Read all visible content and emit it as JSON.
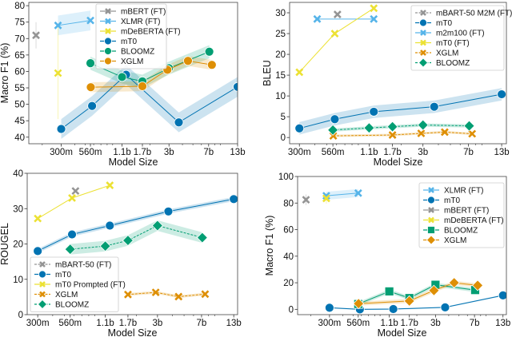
{
  "chart_data": [
    {
      "type": "line",
      "xlabel": "Model Size",
      "ylabel": "Macro F1 (%)",
      "xscale": "log",
      "xlim": [
        0.15,
        13
      ],
      "ylim": [
        38,
        81
      ],
      "xticks": [
        0.3,
        0.56,
        1.1,
        1.7,
        3,
        7,
        13
      ],
      "xtick_labels": [
        "300m",
        "560m",
        "1.1b",
        "1.7b",
        "3b",
        "7b",
        "13b"
      ],
      "yticks": [
        40,
        45,
        50,
        55,
        60,
        65,
        70,
        75,
        80
      ],
      "legend": "top-center",
      "series": [
        {
          "name": "mBERT (FT)",
          "color": "#949494",
          "marker": "x",
          "linestyle": "solid",
          "band": 4,
          "x": [
            0.175
          ],
          "y": [
            71
          ]
        },
        {
          "name": "XLMR (FT)",
          "color": "#56b4e9",
          "marker": "x",
          "linestyle": "solid",
          "band": 3,
          "x": [
            0.28,
            0.56
          ],
          "y": [
            74,
            75.5
          ]
        },
        {
          "name": "mDeBERTA (FT)",
          "color": "#ece133",
          "marker": "x",
          "linestyle": "solid",
          "band": 14,
          "x": [
            0.28
          ],
          "y": [
            59.5
          ]
        },
        {
          "name": "mT0",
          "color": "#0173b2",
          "marker": "o",
          "linestyle": "solid",
          "band": 3,
          "x": [
            0.3,
            0.58,
            1.2,
            3.7,
            13
          ],
          "y": [
            42.5,
            49.5,
            59,
            44.5,
            55.3
          ]
        },
        {
          "name": "BLOOMZ",
          "color": "#029e73",
          "marker": "o",
          "linestyle": "solid",
          "band": 2,
          "x": [
            0.56,
            1.1,
            1.7,
            3,
            7.1
          ],
          "y": [
            62.5,
            58.3,
            57,
            61,
            66
          ]
        },
        {
          "name": "XGLM",
          "color": "#de8f05",
          "marker": "o",
          "linestyle": "solid",
          "band": 1.5,
          "x": [
            0.564,
            1.7,
            2.9,
            4.5,
            7.5
          ],
          "y": [
            55.2,
            55.5,
            60.5,
            63.2,
            62
          ]
        }
      ]
    },
    {
      "type": "line",
      "xlabel": "Model Size",
      "ylabel": "BLEU",
      "xscale": "log",
      "xlim": [
        0.25,
        14.2
      ],
      "ylim": [
        -1.5,
        32.5
      ],
      "xticks": [
        0.3,
        0.56,
        1.1,
        1.7,
        3,
        7,
        13
      ],
      "xtick_labels": [
        "300m",
        "560m",
        "1.1b",
        "1.7b",
        "3b",
        "7b",
        "13b"
      ],
      "yticks": [
        0,
        5,
        10,
        15,
        20,
        25,
        30
      ],
      "legend": "top-right",
      "series": [
        {
          "name": "mBART-50 M2M (FT)",
          "color": "#949494",
          "marker": "x",
          "linestyle": "dashed",
          "band": 0,
          "x": [
            0.61
          ],
          "y": [
            29.6
          ]
        },
        {
          "name": "mT0",
          "color": "#0173b2",
          "marker": "o",
          "linestyle": "solid",
          "band": 1.5,
          "x": [
            0.3,
            0.58,
            1.2,
            3.7,
            13
          ],
          "y": [
            2.2,
            4.4,
            6.2,
            7.4,
            10.4
          ]
        },
        {
          "name": "m2m100 (FT)",
          "color": "#56b4e9",
          "marker": "x",
          "linestyle": "solid",
          "band": 0,
          "x": [
            0.418,
            1.2
          ],
          "y": [
            28.5,
            28.5
          ]
        },
        {
          "name": "mT0 (FT)",
          "color": "#ece133",
          "marker": "x",
          "linestyle": "solid",
          "band": 0,
          "x": [
            0.3,
            0.58,
            1.2
          ],
          "y": [
            15.7,
            25,
            31.1
          ]
        },
        {
          "name": "XGLM",
          "color": "#de8f05",
          "marker": "x",
          "linestyle": "dashed",
          "band": 0.3,
          "x": [
            0.564,
            1.7,
            2.9,
            4.5,
            7.5
          ],
          "y": [
            0.4,
            0.6,
            1.0,
            1.3,
            0.9
          ]
        },
        {
          "name": "BLOOMZ",
          "color": "#029e73",
          "marker": "D",
          "linestyle": "dashed",
          "band": 0.4,
          "x": [
            0.56,
            1.1,
            1.7,
            3,
            7.1
          ],
          "y": [
            1.8,
            2.3,
            2.6,
            3.0,
            2.8
          ]
        }
      ]
    },
    {
      "type": "line",
      "xlabel": "Model Size",
      "ylabel": "ROUGEL",
      "xscale": "log",
      "xlim": [
        0.245,
        14
      ],
      "ylim": [
        0,
        40
      ],
      "xticks": [
        0.3,
        0.56,
        1.1,
        1.7,
        3,
        7,
        13
      ],
      "xtick_labels": [
        "300m",
        "560m",
        "1.1b",
        "1.7b",
        "3b",
        "7b",
        "13b"
      ],
      "yticks": [
        0,
        10,
        20,
        30,
        40
      ],
      "legend": "lower-left",
      "series": [
        {
          "name": "mBART-50 (FT)",
          "color": "#949494",
          "marker": "x",
          "linestyle": "dashed",
          "band": 0,
          "x": [
            0.62
          ],
          "y": [
            35
          ]
        },
        {
          "name": "mT0",
          "color": "#0173b2",
          "marker": "o",
          "linestyle": "solid",
          "band": 0.6,
          "x": [
            0.3,
            0.58,
            1.2,
            3.7,
            13
          ],
          "y": [
            18,
            22.7,
            25.2,
            29.2,
            32.7
          ]
        },
        {
          "name": "mT0 Prompted (FT)",
          "color": "#ece133",
          "marker": "x",
          "linestyle": "solid",
          "band": 0,
          "x": [
            0.3,
            0.58,
            1.2
          ],
          "y": [
            27.2,
            33,
            36.6
          ]
        },
        {
          "name": "XGLM",
          "color": "#de8f05",
          "marker": "x",
          "linestyle": "dashed",
          "band": 0.4,
          "x": [
            1.7,
            2.9,
            4.5,
            7.5
          ],
          "y": [
            5.7,
            6.3,
            5.1,
            5.8
          ]
        },
        {
          "name": "BLOOMZ",
          "color": "#029e73",
          "marker": "D",
          "linestyle": "dashed",
          "band": 1.5,
          "x": [
            0.56,
            1.1,
            1.7,
            3,
            7.1
          ],
          "y": [
            18.5,
            19.4,
            21,
            25.2,
            21.8
          ]
        }
      ]
    },
    {
      "type": "line",
      "xlabel": "Model Size",
      "ylabel": "Macro F1 (%)",
      "xscale": "log",
      "xlim": [
        0.15,
        14
      ],
      "ylim": [
        -4,
        100
      ],
      "xticks": [
        0.3,
        0.56,
        1.1,
        1.7,
        3,
        7,
        13
      ],
      "xtick_labels": [
        "300m",
        "560m",
        "1.1b",
        "1.7b",
        "3b",
        "7b",
        "13b"
      ],
      "yticks": [
        0,
        20,
        40,
        60,
        80,
        100
      ],
      "legend": "top-right",
      "series": [
        {
          "name": "XLMR (FT)",
          "color": "#56b4e9",
          "marker": "x",
          "linestyle": "solid",
          "band": 3,
          "x": [
            0.28,
            0.56
          ],
          "y": [
            85.5,
            87.5
          ]
        },
        {
          "name": "mT0",
          "color": "#0173b2",
          "marker": "o",
          "linestyle": "solid",
          "band": 0.5,
          "x": [
            0.3,
            0.58,
            1.2,
            3.7,
            13
          ],
          "y": [
            1.2,
            0,
            0.2,
            1.5,
            10.5
          ]
        },
        {
          "name": "mBERT (FT)",
          "color": "#949494",
          "marker": "x",
          "linestyle": "solid",
          "band": 4,
          "x": [
            0.18
          ],
          "y": [
            82.5
          ]
        },
        {
          "name": "mDeBERTA (FT)",
          "color": "#ece133",
          "marker": "x",
          "linestyle": "solid",
          "band": 4,
          "x": [
            0.28
          ],
          "y": [
            83.5
          ]
        },
        {
          "name": "BLOOMZ",
          "color": "#029e73",
          "marker": "s",
          "linestyle": "solid",
          "band": 1.5,
          "x": [
            0.56,
            1.1,
            1.7,
            3,
            7.1
          ],
          "y": [
            4,
            13.5,
            8.5,
            18.5,
            14.5
          ]
        },
        {
          "name": "XGLM",
          "color": "#de8f05",
          "marker": "D",
          "linestyle": "solid",
          "band": 1.5,
          "x": [
            0.564,
            1.7,
            2.9,
            4.5,
            7.5
          ],
          "y": [
            4.3,
            6.3,
            14.2,
            20,
            18
          ]
        }
      ]
    }
  ]
}
